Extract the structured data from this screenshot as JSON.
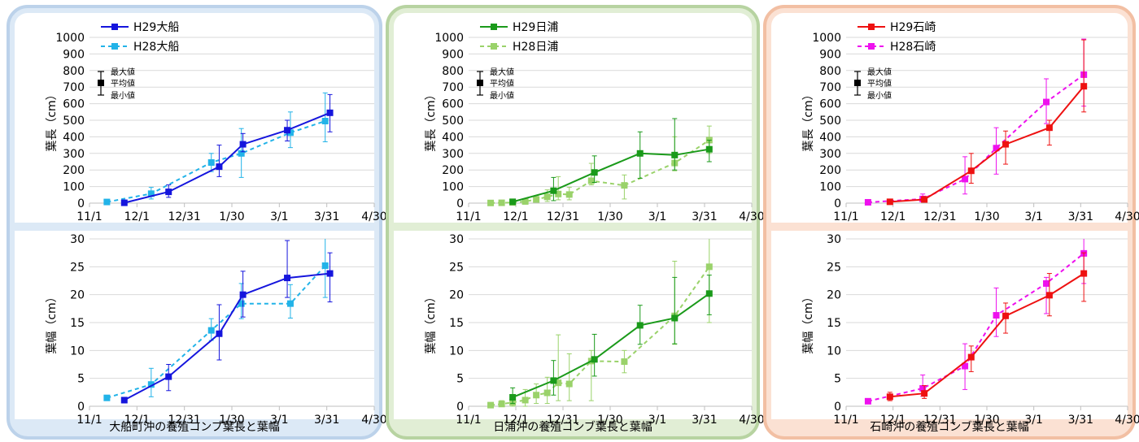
{
  "regions": [
    {
      "id": "ofunato",
      "caption": "大船町沖の養殖コンブ葉長と葉幅",
      "frame_color": "#bcd2ea",
      "fill_color": "#dce9f6",
      "legend_h29": "H29大船",
      "legend_h28": "H28大船",
      "color_h29": "#1515dd",
      "color_h28": "#22b3e8",
      "length": {
        "h29": [
          {
            "x": 22,
            "y": 2,
            "lo": 0,
            "hi": 4
          },
          {
            "x": 50,
            "y": 68,
            "lo": 35,
            "hi": 110
          },
          {
            "x": 82,
            "y": 220,
            "lo": 160,
            "hi": 350
          },
          {
            "x": 97,
            "y": 355,
            "lo": 310,
            "hi": 420
          },
          {
            "x": 125,
            "y": 440,
            "lo": 375,
            "hi": 500
          },
          {
            "x": 152,
            "y": 545,
            "lo": 430,
            "hi": 655
          }
        ],
        "h28": [
          {
            "x": 11,
            "y": 7,
            "lo": 3,
            "hi": 12
          },
          {
            "x": 39,
            "y": 57,
            "lo": 25,
            "hi": 95
          },
          {
            "x": 77,
            "y": 245,
            "lo": 190,
            "hi": 300
          },
          {
            "x": 96,
            "y": 300,
            "lo": 155,
            "hi": 450
          },
          {
            "x": 127,
            "y": 425,
            "lo": 335,
            "hi": 550
          },
          {
            "x": 149,
            "y": 495,
            "lo": 370,
            "hi": 665
          }
        ]
      },
      "width": {
        "h29": [
          {
            "x": 22,
            "y": 1.1,
            "lo": 0.6,
            "hi": 1.6
          },
          {
            "x": 50,
            "y": 5.3,
            "lo": 2.8,
            "hi": 7.5
          },
          {
            "x": 82,
            "y": 13,
            "lo": 8.3,
            "hi": 18.2
          },
          {
            "x": 97,
            "y": 20,
            "lo": 16,
            "hi": 24.2
          },
          {
            "x": 125,
            "y": 23,
            "lo": 19.5,
            "hi": 29.7
          },
          {
            "x": 152,
            "y": 23.8,
            "lo": 18.7,
            "hi": 27.5
          }
        ],
        "h28": [
          {
            "x": 11,
            "y": 1.5,
            "lo": 1.1,
            "hi": 1.9
          },
          {
            "x": 39,
            "y": 3.9,
            "lo": 1.7,
            "hi": 6.8
          },
          {
            "x": 77,
            "y": 13.6,
            "lo": 11.8,
            "hi": 15.7
          },
          {
            "x": 96,
            "y": 18.4,
            "lo": 15.7,
            "hi": 22
          },
          {
            "x": 127,
            "y": 18.4,
            "lo": 15.8,
            "hi": 21.8
          },
          {
            "x": 149,
            "y": 25.2,
            "lo": 19.5,
            "hi": 30
          }
        ]
      }
    },
    {
      "id": "hiura",
      "caption": "日浦沖の養殖コンブ葉長と葉幅",
      "frame_color": "#b7d3a1",
      "fill_color": "#e1eed5",
      "legend_h29": "H29日浦",
      "legend_h28": "H28日浦",
      "color_h29": "#1a9a1a",
      "color_h28": "#9ad26a",
      "length": {
        "h29": [
          {
            "x": 28,
            "y": 8,
            "lo": 2,
            "hi": 18
          },
          {
            "x": 54,
            "y": 75,
            "lo": 15,
            "hi": 155
          },
          {
            "x": 80,
            "y": 185,
            "lo": 125,
            "hi": 285
          },
          {
            "x": 109,
            "y": 300,
            "lo": 150,
            "hi": 430
          },
          {
            "x": 131,
            "y": 290,
            "lo": 200,
            "hi": 510
          },
          {
            "x": 153,
            "y": 325,
            "lo": 250,
            "hi": 380
          }
        ],
        "h28": [
          {
            "x": 14,
            "y": 1,
            "lo": 0,
            "hi": 2
          },
          {
            "x": 21,
            "y": 2,
            "lo": 0,
            "hi": 5
          },
          {
            "x": 28,
            "y": 4,
            "lo": 0,
            "hi": 12
          },
          {
            "x": 36,
            "y": 10,
            "lo": 2,
            "hi": 25
          },
          {
            "x": 43,
            "y": 22,
            "lo": 5,
            "hi": 45
          },
          {
            "x": 50,
            "y": 38,
            "lo": 10,
            "hi": 80
          },
          {
            "x": 57,
            "y": 55,
            "lo": 20,
            "hi": 160
          },
          {
            "x": 64,
            "y": 52,
            "lo": 20,
            "hi": 95
          },
          {
            "x": 78,
            "y": 135,
            "lo": 110,
            "hi": 240
          },
          {
            "x": 99,
            "y": 107,
            "lo": 25,
            "hi": 170
          },
          {
            "x": 131,
            "y": 242,
            "lo": 195,
            "hi": 400
          },
          {
            "x": 153,
            "y": 380,
            "lo": 300,
            "hi": 465
          }
        ]
      },
      "width": {
        "h29": [
          {
            "x": 28,
            "y": 1.6,
            "lo": 0.5,
            "hi": 3.3
          },
          {
            "x": 54,
            "y": 4.6,
            "lo": 2,
            "hi": 8.2
          },
          {
            "x": 80,
            "y": 8.4,
            "lo": 5.4,
            "hi": 12.9
          },
          {
            "x": 109,
            "y": 14.5,
            "lo": 11.1,
            "hi": 18.1
          },
          {
            "x": 131,
            "y": 15.8,
            "lo": 11.2,
            "hi": 23.1
          },
          {
            "x": 153,
            "y": 20.2,
            "lo": 16.4,
            "hi": 23.5
          }
        ],
        "h28": [
          {
            "x": 14,
            "y": 0.2,
            "lo": 0,
            "hi": 0.6
          },
          {
            "x": 21,
            "y": 0.4,
            "lo": 0,
            "hi": 1
          },
          {
            "x": 28,
            "y": 0.7,
            "lo": 0,
            "hi": 2
          },
          {
            "x": 36,
            "y": 1.1,
            "lo": 0,
            "hi": 3
          },
          {
            "x": 43,
            "y": 2,
            "lo": 0.5,
            "hi": 4
          },
          {
            "x": 50,
            "y": 2.4,
            "lo": 0.5,
            "hi": 5.2
          },
          {
            "x": 57,
            "y": 4.2,
            "lo": 1,
            "hi": 12.8
          },
          {
            "x": 64,
            "y": 4,
            "lo": 1,
            "hi": 9.4
          },
          {
            "x": 78,
            "y": 8.1,
            "lo": 1,
            "hi": 10
          },
          {
            "x": 99,
            "y": 8,
            "lo": 6,
            "hi": 10
          },
          {
            "x": 131,
            "y": 16.2,
            "lo": 11.1,
            "hi": 26
          },
          {
            "x": 153,
            "y": 25,
            "lo": 15,
            "hi": 30
          }
        ]
      }
    },
    {
      "id": "ishizaki",
      "caption": "石崎沖の養殖コンブ葉長と葉幅",
      "frame_color": "#f2bfa3",
      "fill_color": "#fbe1d3",
      "legend_h29": "H29石崎",
      "legend_h28": "H28石崎",
      "color_h29": "#ee1111",
      "color_h28": "#ee11ee",
      "length": {
        "h29": [
          {
            "x": 28,
            "y": 8,
            "lo": 3,
            "hi": 15
          },
          {
            "x": 50,
            "y": 22,
            "lo": 10,
            "hi": 40
          },
          {
            "x": 80,
            "y": 195,
            "lo": 120,
            "hi": 300
          },
          {
            "x": 102,
            "y": 355,
            "lo": 235,
            "hi": 435
          },
          {
            "x": 130,
            "y": 455,
            "lo": 350,
            "hi": 500
          },
          {
            "x": 152,
            "y": 705,
            "lo": 550,
            "hi": 985
          }
        ],
        "h28": [
          {
            "x": 14,
            "y": 5,
            "lo": 2,
            "hi": 9
          },
          {
            "x": 49,
            "y": 25,
            "lo": 12,
            "hi": 55
          },
          {
            "x": 76,
            "y": 145,
            "lo": 55,
            "hi": 280
          },
          {
            "x": 96,
            "y": 332,
            "lo": 175,
            "hi": 455
          },
          {
            "x": 128,
            "y": 610,
            "lo": 480,
            "hi": 750
          },
          {
            "x": 152,
            "y": 775,
            "lo": 585,
            "hi": 990
          }
        ]
      },
      "width": {
        "h29": [
          {
            "x": 28,
            "y": 1.7,
            "lo": 1,
            "hi": 2.5
          },
          {
            "x": 50,
            "y": 2.3,
            "lo": 1.4,
            "hi": 3.7
          },
          {
            "x": 80,
            "y": 8.8,
            "lo": 6.2,
            "hi": 10.8
          },
          {
            "x": 102,
            "y": 16.2,
            "lo": 13.1,
            "hi": 18.5
          },
          {
            "x": 130,
            "y": 19.9,
            "lo": 16.2,
            "hi": 23.8
          },
          {
            "x": 152,
            "y": 23.8,
            "lo": 18.8,
            "hi": 27.5
          }
        ],
        "h28": [
          {
            "x": 14,
            "y": 0.9,
            "lo": 0.6,
            "hi": 1.2
          },
          {
            "x": 49,
            "y": 3.2,
            "lo": 1.8,
            "hi": 5.6
          },
          {
            "x": 76,
            "y": 7.2,
            "lo": 3,
            "hi": 11.2
          },
          {
            "x": 96,
            "y": 16.3,
            "lo": 12.5,
            "hi": 21.2
          },
          {
            "x": 128,
            "y": 22,
            "lo": 16.6,
            "hi": 23.1
          },
          {
            "x": 152,
            "y": 27.4,
            "lo": 22,
            "hi": 30
          }
        ]
      }
    }
  ],
  "chart_data": {
    "type": "line",
    "x_unit": "days since 11/1",
    "x_ticks": [
      0,
      30,
      60,
      90,
      120,
      150,
      180
    ],
    "x_tick_labels": [
      "11/1",
      "12/1",
      "12/31",
      "1/30",
      "3/1",
      "3/31",
      "4/30"
    ],
    "length_axis": {
      "ylabel": "葉長（cm）",
      "ylim": [
        0,
        1000
      ],
      "yticks": [
        0,
        100,
        200,
        300,
        400,
        500,
        600,
        700,
        800,
        900,
        1000
      ]
    },
    "width_axis": {
      "ylabel": "葉幅（cm）",
      "ylim": [
        0,
        30
      ],
      "yticks": [
        0,
        5,
        10,
        15,
        20,
        25,
        30
      ]
    },
    "error_key": {
      "max": "最大値",
      "mean": "平均値",
      "min": "最小値"
    }
  }
}
